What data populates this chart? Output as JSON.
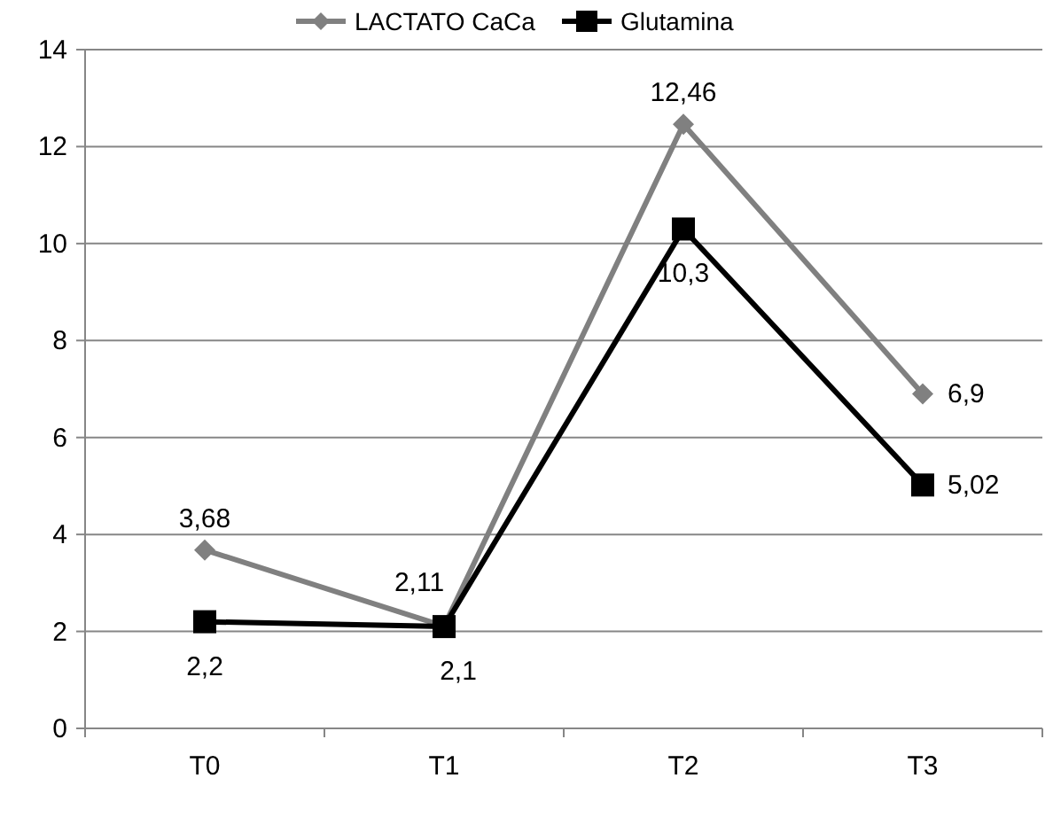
{
  "chart_data": {
    "type": "line",
    "categories": [
      "T0",
      "T1",
      "T2",
      "T3"
    ],
    "series": [
      {
        "name": "LACTATO CaCa",
        "color": "#808080",
        "marker": "diamond",
        "values": [
          3.68,
          2.11,
          12.46,
          6.9
        ],
        "value_labels": [
          "3,68",
          "2,11",
          "12,46",
          "6,9"
        ]
      },
      {
        "name": "Glutamina",
        "color": "#000000",
        "marker": "square",
        "values": [
          2.2,
          2.1,
          10.3,
          5.02
        ],
        "value_labels": [
          "2,2",
          "2,1",
          "10,3",
          "5,02"
        ]
      }
    ],
    "ylim": [
      0,
      14
    ],
    "yticks": [
      0,
      2,
      4,
      6,
      8,
      10,
      12,
      14
    ],
    "grid": "y",
    "legend": "top"
  }
}
